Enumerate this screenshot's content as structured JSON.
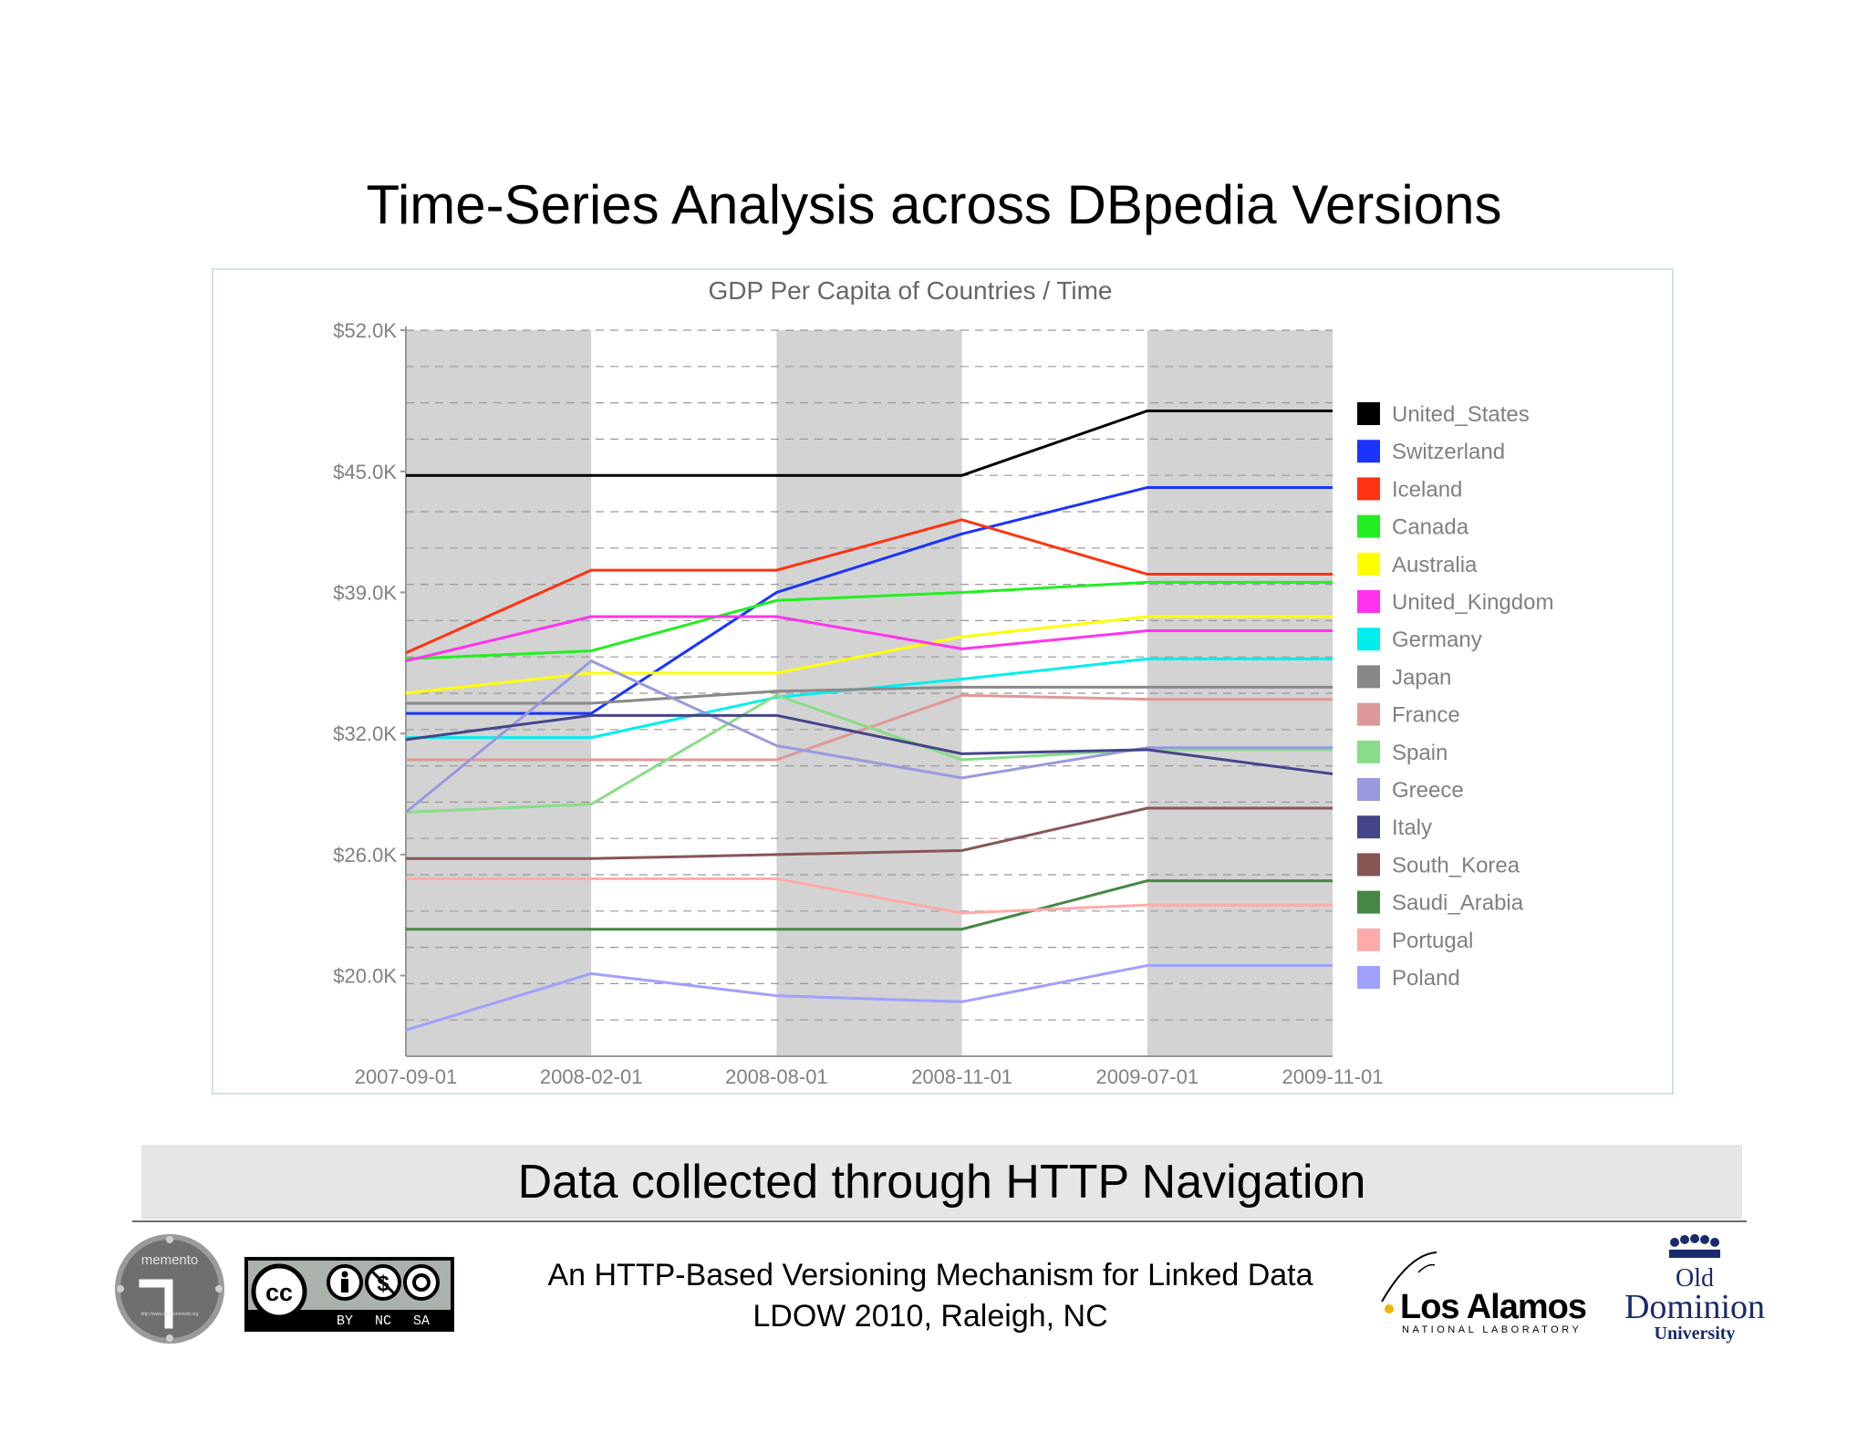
{
  "slide": {
    "title": "Time-Series Analysis across DBpedia Versions",
    "subtitle": "Data collected through HTTP Navigation",
    "footer_line1": "An HTTP-Based Versioning Mechanism for Linked Data",
    "footer_line2": "LDOW 2010, Raleigh, NC"
  },
  "logos": {
    "memento_text": "memento",
    "memento_url": "http://www.mementoweb.org",
    "cc_labels": [
      "BY",
      "NC",
      "SA"
    ],
    "lanl_name": "Los Alamos",
    "lanl_sub": "NATIONAL LABORATORY",
    "odu_line1": "Old",
    "odu_line2": "Dominion",
    "odu_line3": "University"
  },
  "chart_data": {
    "type": "line",
    "title": "GDP Per Capita of Countries / Time",
    "xlabel": "",
    "ylabel": "",
    "x": [
      "2007-09-01",
      "2008-02-01",
      "2008-08-01",
      "2008-11-01",
      "2009-07-01",
      "2009-11-01"
    ],
    "y_ticks": [
      "$52.0K",
      "$45.0K",
      "$39.0K",
      "$32.0K",
      "$26.0K",
      "$20.0K"
    ],
    "y_tick_values": [
      52,
      45,
      39,
      32,
      26,
      20
    ],
    "ylim": [
      16,
      52
    ],
    "y_unit": "thousand USD",
    "grid": true,
    "shaded_bands": [
      [
        0,
        1
      ],
      [
        2,
        3
      ],
      [
        4,
        5
      ]
    ],
    "band_color": "#d3d3d3",
    "legend_position": "right",
    "series": [
      {
        "name": "United_States",
        "color": "#000000",
        "values": [
          44.8,
          44.8,
          44.8,
          44.8,
          48.0,
          48.0
        ]
      },
      {
        "name": "Switzerland",
        "color": "#1a33ff",
        "values": [
          33.0,
          33.0,
          39.0,
          41.9,
          44.2,
          44.2
        ]
      },
      {
        "name": "Iceland",
        "color": "#ff3311",
        "values": [
          36.0,
          40.1,
          40.1,
          42.6,
          39.9,
          39.9
        ]
      },
      {
        "name": "Canada",
        "color": "#22ee22",
        "values": [
          35.7,
          36.1,
          38.6,
          39.0,
          39.5,
          39.5
        ]
      },
      {
        "name": "Australia",
        "color": "#ffff00",
        "values": [
          34.0,
          35.0,
          35.0,
          36.8,
          37.8,
          37.8
        ]
      },
      {
        "name": "United_Kingdom",
        "color": "#ff33ee",
        "values": [
          35.6,
          37.8,
          37.8,
          36.2,
          37.1,
          37.1
        ]
      },
      {
        "name": "Germany",
        "color": "#00eeee",
        "values": [
          31.8,
          31.8,
          33.8,
          34.7,
          35.7,
          35.7
        ]
      },
      {
        "name": "Japan",
        "color": "#888888",
        "values": [
          33.5,
          33.5,
          34.1,
          34.3,
          34.3,
          34.3
        ]
      },
      {
        "name": "France",
        "color": "#dd9999",
        "values": [
          30.7,
          30.7,
          30.7,
          33.9,
          33.7,
          33.7
        ]
      },
      {
        "name": "Spain",
        "color": "#88dd88",
        "values": [
          28.1,
          28.5,
          33.9,
          30.7,
          31.2,
          31.2
        ]
      },
      {
        "name": "Greece",
        "color": "#9999dd",
        "values": [
          28.1,
          35.6,
          31.4,
          29.8,
          31.3,
          31.3
        ]
      },
      {
        "name": "Italy",
        "color": "#444488",
        "values": [
          31.7,
          32.9,
          32.9,
          31.0,
          31.2,
          30.0
        ]
      },
      {
        "name": "South_Korea",
        "color": "#885555",
        "values": [
          25.8,
          25.8,
          26.0,
          26.2,
          28.3,
          28.3
        ]
      },
      {
        "name": "Saudi_Arabia",
        "color": "#448844",
        "values": [
          22.3,
          22.3,
          22.3,
          22.3,
          24.7,
          24.7
        ]
      },
      {
        "name": "Portugal",
        "color": "#ffaaaa",
        "values": [
          24.8,
          24.8,
          24.8,
          23.1,
          23.5,
          23.5
        ]
      },
      {
        "name": "Poland",
        "color": "#a0a0ff",
        "values": [
          17.3,
          20.1,
          19.0,
          18.7,
          20.5,
          20.5
        ]
      }
    ]
  }
}
